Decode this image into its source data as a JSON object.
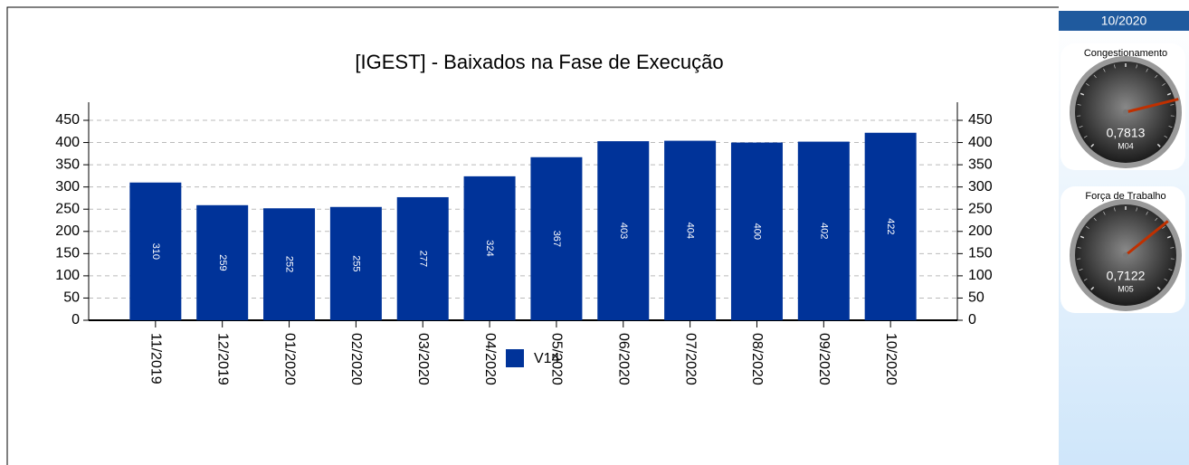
{
  "chart_data": {
    "type": "bar",
    "title": "[IGEST]  - Baixados na Fase de Execução",
    "categories": [
      "11/2019",
      "12/2019",
      "01/2020",
      "02/2020",
      "03/2020",
      "04/2020",
      "05/2020",
      "06/2020",
      "07/2020",
      "08/2020",
      "09/2020",
      "10/2020"
    ],
    "series": [
      {
        "name": "V14",
        "color": "#003399",
        "values": [
          310,
          259,
          252,
          255,
          277,
          324,
          367,
          403,
          404,
          400,
          402,
          422
        ]
      }
    ],
    "ylim": [
      0,
      450
    ],
    "yticks": [
      0,
      50,
      100,
      150,
      200,
      250,
      300,
      350,
      400,
      450
    ],
    "grid": true
  },
  "side_panel": {
    "period": "10/2020",
    "gauges": [
      {
        "title": "Congestionamento",
        "value": 0.7813,
        "value_label": "0,7813",
        "code": "M04"
      },
      {
        "title": "Força de Trabalho",
        "value": 0.7122,
        "value_label": "0,7122",
        "code": "M05"
      }
    ]
  }
}
